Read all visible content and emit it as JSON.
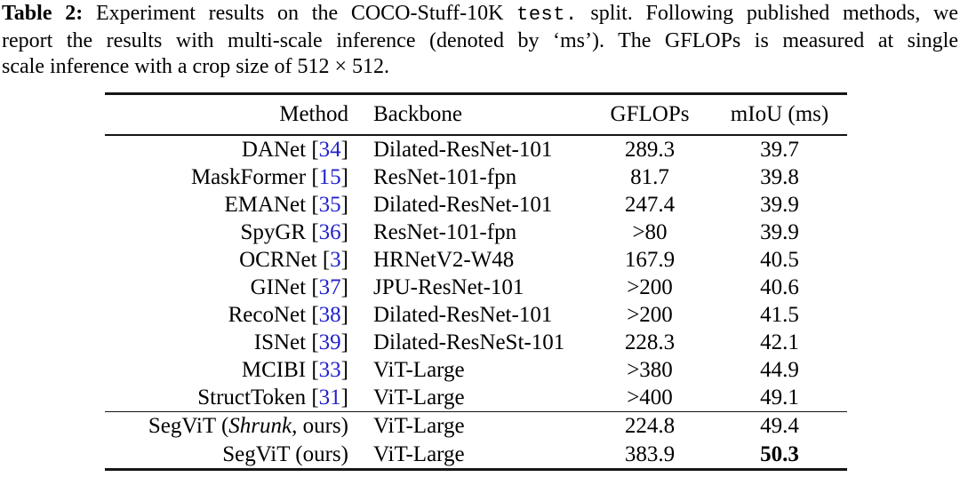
{
  "caption": {
    "label": "Table 2:",
    "line1_a": "Experiment results on the COCO-Stuff-10K",
    "mono": "test.",
    "line1_b": "split. Following published methods, we",
    "line2": "report the results with multi-scale inference (denoted by ‘ms’). The GFLOPs is measured at single",
    "line3": "scale inference with a crop size of 512 × 512."
  },
  "table": {
    "headers": [
      "Method",
      "Backbone",
      "GFLOPs",
      "mIoU (ms)"
    ],
    "citation_color": "#2222cc",
    "rows": [
      {
        "method": "DANet",
        "cite": "34",
        "backbone": "Dilated-ResNet-101",
        "gflops": "289.3",
        "miou": "39.7"
      },
      {
        "method": "MaskFormer",
        "cite": "15",
        "backbone": "ResNet-101-fpn",
        "gflops": "81.7",
        "miou": "39.8"
      },
      {
        "method": "EMANet",
        "cite": "35",
        "backbone": "Dilated-ResNet-101",
        "gflops": "247.4",
        "miou": "39.9"
      },
      {
        "method": "SpyGR",
        "cite": "36",
        "backbone": "ResNet-101-fpn",
        "gflops": ">80",
        "miou": "39.9"
      },
      {
        "method": "OCRNet",
        "cite": "3",
        "backbone": "HRNetV2-W48",
        "gflops": "167.9",
        "miou": "40.5"
      },
      {
        "method": "GINet",
        "cite": "37",
        "backbone": "JPU-ResNet-101",
        "gflops": ">200",
        "miou": "40.6"
      },
      {
        "method": "RecoNet",
        "cite": "38",
        "backbone": "Dilated-ResNet-101",
        "gflops": ">200",
        "miou": "41.5"
      },
      {
        "method": "ISNet",
        "cite": "39",
        "backbone": "Dilated-ResNeSt-101",
        "gflops": "228.3",
        "miou": "42.1"
      },
      {
        "method": "MCIBI",
        "cite": "33",
        "backbone": "ViT-Large",
        "gflops": ">380",
        "miou": "44.9"
      },
      {
        "method": "StructToken",
        "cite": "31",
        "backbone": "ViT-Large",
        "gflops": ">400",
        "miou": "49.1"
      }
    ],
    "rows_ours": [
      {
        "method_parts": {
          "prefix": "SegViT (",
          "italic": "Shrunk",
          "suffix": ", ours)"
        },
        "backbone": "ViT-Large",
        "gflops": "224.8",
        "miou": "49.4",
        "miou_bold": false
      },
      {
        "method_parts": {
          "prefix": "SegViT (ours)",
          "italic": "",
          "suffix": ""
        },
        "backbone": "ViT-Large",
        "gflops": "383.9",
        "miou": "50.3",
        "miou_bold": true
      }
    ]
  }
}
